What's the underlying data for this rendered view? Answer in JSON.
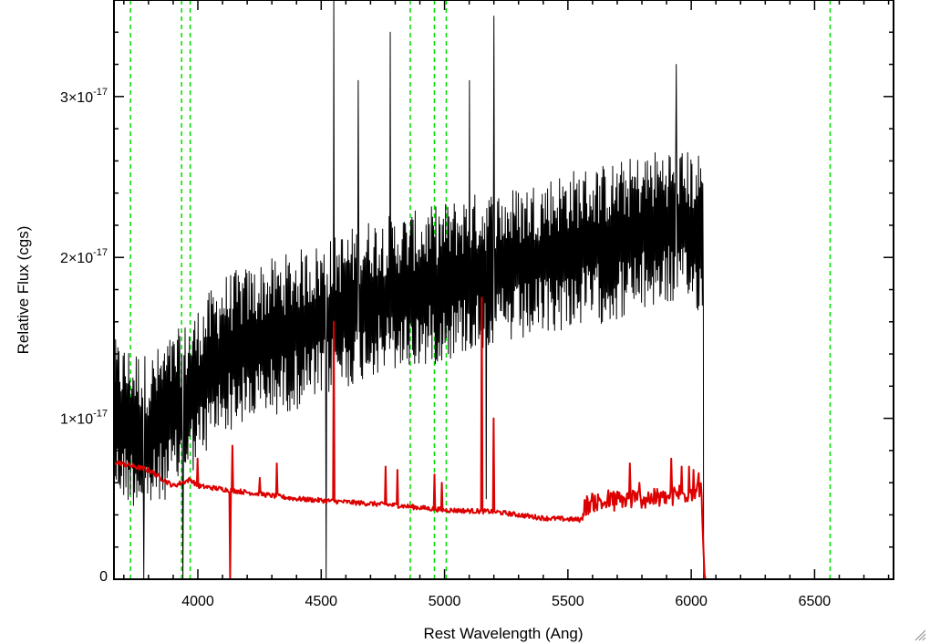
{
  "chart_data": {
    "type": "line",
    "title": "",
    "xlabel": "Rest Wavelength (Ang)",
    "ylabel": "Relative Flux (cgs)",
    "xlim": [
      3660,
      6820
    ],
    "ylim": [
      0,
      3.6e-17
    ],
    "x_ticks": [
      {
        "value": 4000,
        "label": "4000"
      },
      {
        "value": 4500,
        "label": "4500"
      },
      {
        "value": 5000,
        "label": "5000"
      },
      {
        "value": 5500,
        "label": "5500"
      },
      {
        "value": 6000,
        "label": "6000"
      },
      {
        "value": 6500,
        "label": "6500"
      }
    ],
    "y_ticks": [
      {
        "value": 0,
        "label": "0",
        "exponent": ""
      },
      {
        "value": 1e-17,
        "label": "1×10",
        "exponent": "-17"
      },
      {
        "value": 2e-17,
        "label": "2×10",
        "exponent": "-17"
      },
      {
        "value": 3e-17,
        "label": "3×10",
        "exponent": "-17"
      }
    ],
    "vertical_lines": {
      "color": "#00dd00",
      "style": "dashed",
      "x": [
        3727,
        3934,
        3969,
        4861,
        4959,
        5007,
        6563
      ]
    },
    "series": [
      {
        "color": "#000000",
        "x_range": [
          3660,
          6050
        ],
        "continuum_knots": [
          [
            3660,
            1e-17
          ],
          [
            3800,
            9e-18
          ],
          [
            3950,
            1.1e-17
          ],
          [
            4100,
            1.4e-17
          ],
          [
            4300,
            1.5e-17
          ],
          [
            4500,
            1.6e-17
          ],
          [
            4700,
            1.75e-17
          ],
          [
            4900,
            1.8e-17
          ],
          [
            5100,
            1.9e-17
          ],
          [
            5300,
            1.95e-17
          ],
          [
            5500,
            2.05e-17
          ],
          [
            5700,
            2.1e-17
          ],
          [
            5900,
            2.2e-17
          ],
          [
            6050,
            2.15e-17
          ]
        ],
        "noise_amplitude": 4.5e-18,
        "spikes": [
          [
            4550,
            3.65e-17
          ],
          [
            4780,
            3.4e-17
          ],
          [
            5200,
            3.5e-17
          ],
          [
            5100,
            3.1e-17
          ],
          [
            4650,
            3.1e-17
          ],
          [
            5940,
            3.2e-17
          ],
          [
            4520,
            0.0
          ],
          [
            5170,
            5e-18
          ],
          [
            3940,
            0.0
          ],
          [
            3780,
            0.0
          ]
        ]
      },
      {
        "color": "#dd0000",
        "x_range": [
          3660,
          6820
        ],
        "continuum_knots": [
          [
            3660,
            7.3e-18
          ],
          [
            3800,
            6.8e-18
          ],
          [
            3900,
            5.8e-18
          ],
          [
            3970,
            6.2e-18
          ],
          [
            4000,
            5.8e-18
          ],
          [
            4200,
            5.4e-18
          ],
          [
            4400,
            5e-18
          ],
          [
            4600,
            4.8e-18
          ],
          [
            4800,
            4.6e-18
          ],
          [
            5000,
            4.3e-18
          ],
          [
            5200,
            4.2e-18
          ],
          [
            5400,
            3.8e-18
          ],
          [
            5550,
            3.7e-18
          ],
          [
            5600,
            4.2e-18
          ],
          [
            5800,
            4.4e-18
          ],
          [
            5900,
            4.5e-18
          ],
          [
            6040,
            5e-18
          ],
          [
            6055,
            0.0
          ],
          [
            6820,
            0.0
          ]
        ],
        "lines": [
          [
            4130,
            -1e-18
          ],
          [
            4140,
            8.3e-18
          ],
          [
            4000,
            7.5e-18
          ],
          [
            4250,
            6.3e-18
          ],
          [
            4320,
            7.2e-18
          ],
          [
            4550,
            1.6e-17
          ],
          [
            4760,
            7e-18
          ],
          [
            4810,
            6.8e-18
          ],
          [
            4960,
            6.5e-18
          ],
          [
            4990,
            6e-18
          ],
          [
            5150,
            1.75e-17
          ],
          [
            5200,
            1e-17
          ],
          [
            5580,
            5e-18
          ],
          [
            5610,
            5.2e-18
          ],
          [
            5750,
            7.2e-18
          ],
          [
            5790,
            6e-18
          ],
          [
            5920,
            7.5e-18
          ],
          [
            5960,
            7e-18
          ],
          [
            5990,
            7e-18
          ],
          [
            6010,
            6.8e-18
          ],
          [
            6030,
            6.6e-18
          ]
        ]
      }
    ]
  }
}
